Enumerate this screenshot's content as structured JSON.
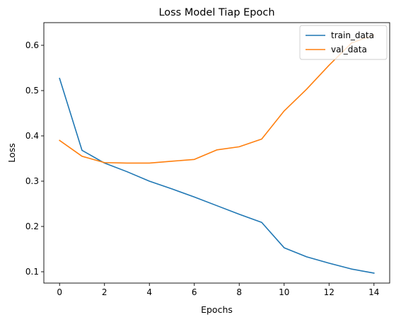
{
  "chart_data": {
    "type": "line",
    "title": "Loss Model Tiap Epoch",
    "xlabel": "Epochs",
    "ylabel": "Loss",
    "x": [
      0,
      1,
      2,
      3,
      4,
      5,
      6,
      7,
      8,
      9,
      10,
      11,
      12,
      13,
      14
    ],
    "xticks": [
      0,
      2,
      4,
      6,
      8,
      10,
      12,
      14
    ],
    "yticks": [
      0.1,
      0.2,
      0.3,
      0.4,
      0.5,
      0.6
    ],
    "ytick_labels": [
      "0.1",
      "0.2",
      "0.3",
      "0.4",
      "0.5",
      "0.6"
    ],
    "xlim": [
      -0.7,
      14.7
    ],
    "ylim": [
      0.075,
      0.65
    ],
    "grid": false,
    "legend_position": "top-right",
    "series": [
      {
        "name": "train_data",
        "color": "#1f77b4",
        "values": [
          0.527,
          0.368,
          0.34,
          0.321,
          0.3,
          0.283,
          0.265,
          0.246,
          0.227,
          0.209,
          0.153,
          0.133,
          0.119,
          0.106,
          0.097
        ]
      },
      {
        "name": "val_data",
        "color": "#ff7f0e",
        "values": [
          0.39,
          0.355,
          0.341,
          0.34,
          0.34,
          0.344,
          0.348,
          0.369,
          0.376,
          0.393,
          0.455,
          0.503,
          0.556,
          0.605,
          0.623
        ]
      }
    ]
  }
}
